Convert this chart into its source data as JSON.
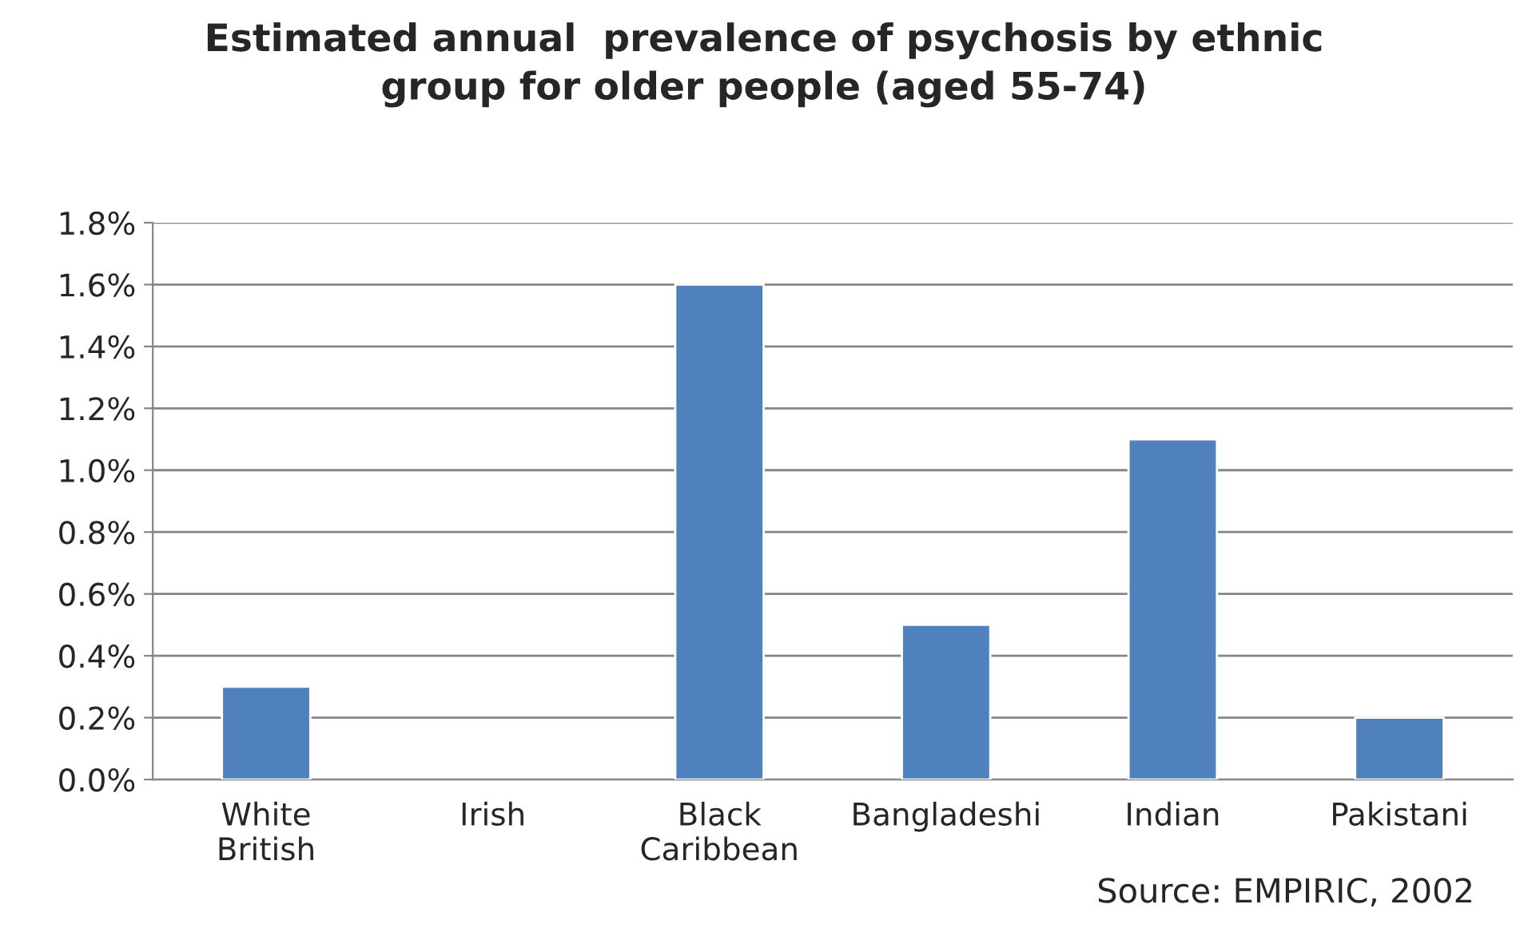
{
  "chart_data": {
    "type": "bar",
    "title": "Estimated annual  prevalence of psychosis by ethnic\ngroup for older people (aged 55-74)",
    "categories": [
      "White\nBritish",
      "Irish",
      "Black\nCaribbean",
      "Bangladeshi",
      "Indian",
      "Pakistani"
    ],
    "values": [
      0.3,
      null,
      1.6,
      0.5,
      1.1,
      0.2
    ],
    "color": "#4f81bd",
    "ylim": [
      0,
      1.8
    ],
    "yticks": [
      {
        "value": 0,
        "label": "0.0%"
      },
      {
        "value": 0.2,
        "label": "0.2%"
      },
      {
        "value": 0.4,
        "label": "0.4%"
      },
      {
        "value": 0.6,
        "label": "0.6%"
      },
      {
        "value": 0.8,
        "label": "0.8%"
      },
      {
        "value": 1.0,
        "label": "1.0%"
      },
      {
        "value": 1.2,
        "label": "1.2%"
      },
      {
        "value": 1.4,
        "label": "1.4%"
      },
      {
        "value": 1.6,
        "label": "1.6%"
      },
      {
        "value": 1.8,
        "label": "1.8%"
      }
    ],
    "grid": "y",
    "annotations": [
      "Source: EMPIRIC, 2002"
    ]
  }
}
